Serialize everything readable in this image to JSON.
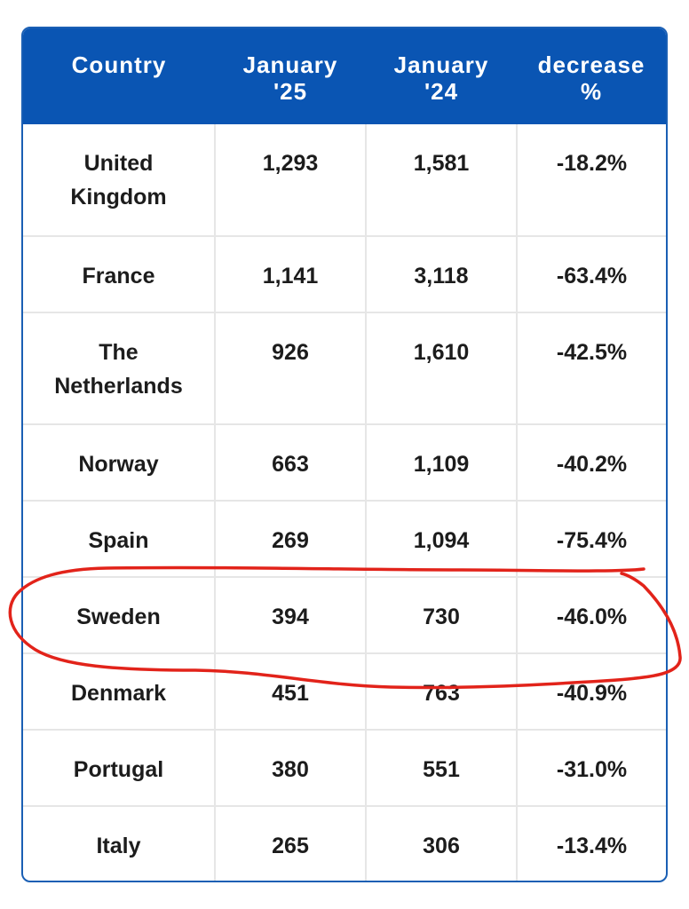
{
  "table": {
    "headers": [
      "Country",
      "January\n'25",
      "January\n'24",
      "decrease\n%"
    ],
    "rows": [
      {
        "country": "United\nKingdom",
        "jan25": "1,293",
        "jan24": "1,581",
        "decrease": "-18.2%"
      },
      {
        "country": "France",
        "jan25": "1,141",
        "jan24": "3,118",
        "decrease": "-63.4%"
      },
      {
        "country": "The\nNetherlands",
        "jan25": "926",
        "jan24": "1,610",
        "decrease": "-42.5%"
      },
      {
        "country": "Norway",
        "jan25": "663",
        "jan24": "1,109",
        "decrease": "-40.2%"
      },
      {
        "country": "Spain",
        "jan25": "269",
        "jan24": "1,094",
        "decrease": "-75.4%"
      },
      {
        "country": "Sweden",
        "jan25": "394",
        "jan24": "730",
        "decrease": "-46.0%"
      },
      {
        "country": "Denmark",
        "jan25": "451",
        "jan24": "763",
        "decrease": "-40.9%"
      },
      {
        "country": "Portugal",
        "jan25": "380",
        "jan24": "551",
        "decrease": "-31.0%"
      },
      {
        "country": "Italy",
        "jan25": "265",
        "jan24": "306",
        "decrease": "-13.4%"
      }
    ]
  },
  "colors": {
    "header_bg": "#0a55b3",
    "header_text": "#ffffff",
    "cell_text": "#1c1c1c",
    "grid": "#e6e6e6",
    "annotation": "#e2231a"
  }
}
